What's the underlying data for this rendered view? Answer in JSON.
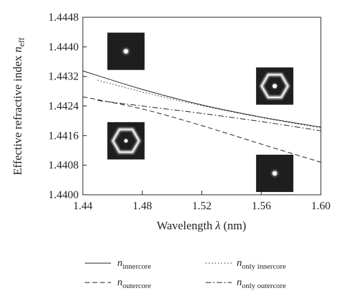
{
  "chart_data": {
    "type": "line",
    "title": "",
    "xlabel": {
      "main": "Wavelength ",
      "italic": "λ",
      "unit": " (nm)"
    },
    "ylabel": {
      "main": "Effective refractive index ",
      "italic": "n",
      "sub": "eff"
    },
    "xlim": [
      1.44,
      1.6
    ],
    "ylim": [
      1.44,
      1.4448
    ],
    "x_ticks": [
      "1.44",
      "1.48",
      "1.52",
      "1.56",
      "1.60"
    ],
    "y_ticks": [
      "1.4400",
      "1.4408",
      "1.4416",
      "1.4424",
      "1.4432",
      "1.4440",
      "1.4448"
    ],
    "grid": false,
    "legend_position": "bottom",
    "series": [
      {
        "name": "n_innercore",
        "symbol": "n",
        "sub": "innercore",
        "dash": "solid",
        "x": [
          1.44,
          1.48,
          1.52,
          1.56,
          1.6
        ],
        "y": [
          1.44335,
          1.44285,
          1.44243,
          1.4421,
          1.44183
        ]
      },
      {
        "name": "n_only innercore",
        "symbol": "n",
        "sub": "only innercore",
        "dash": "dotted",
        "x": [
          1.45,
          1.48,
          1.52,
          1.56,
          1.6
        ],
        "y": [
          1.4431,
          1.44278,
          1.44241,
          1.44209,
          1.44181
        ]
      },
      {
        "name": "n_outercore",
        "symbol": "n",
        "sub": "outercore",
        "dash": "dashed",
        "x": [
          1.44,
          1.48,
          1.52,
          1.56,
          1.6
        ],
        "y": [
          1.44265,
          1.44232,
          1.44187,
          1.44137,
          1.44088
        ]
      },
      {
        "name": "n_only outercore",
        "symbol": "n",
        "sub": "only outercore",
        "dash": "dashdot",
        "x": [
          1.45,
          1.48,
          1.52,
          1.56,
          1.6
        ],
        "y": [
          1.44255,
          1.4424,
          1.4422,
          1.44198,
          1.44173
        ]
      }
    ],
    "insets": [
      {
        "name": "inset-innercore-mode",
        "shape": "spot",
        "x": 1.469,
        "y": 1.44388
      },
      {
        "name": "inset-hexagon-ring-with-center",
        "shape": "hex-ring-center",
        "x": 1.569,
        "y": 1.44294
      },
      {
        "name": "inset-hexagon-ring",
        "shape": "hex-ring",
        "x": 1.469,
        "y": 1.44146
      },
      {
        "name": "inset-spot-lower-right",
        "shape": "spot",
        "x": 1.569,
        "y": 1.44058
      }
    ]
  }
}
